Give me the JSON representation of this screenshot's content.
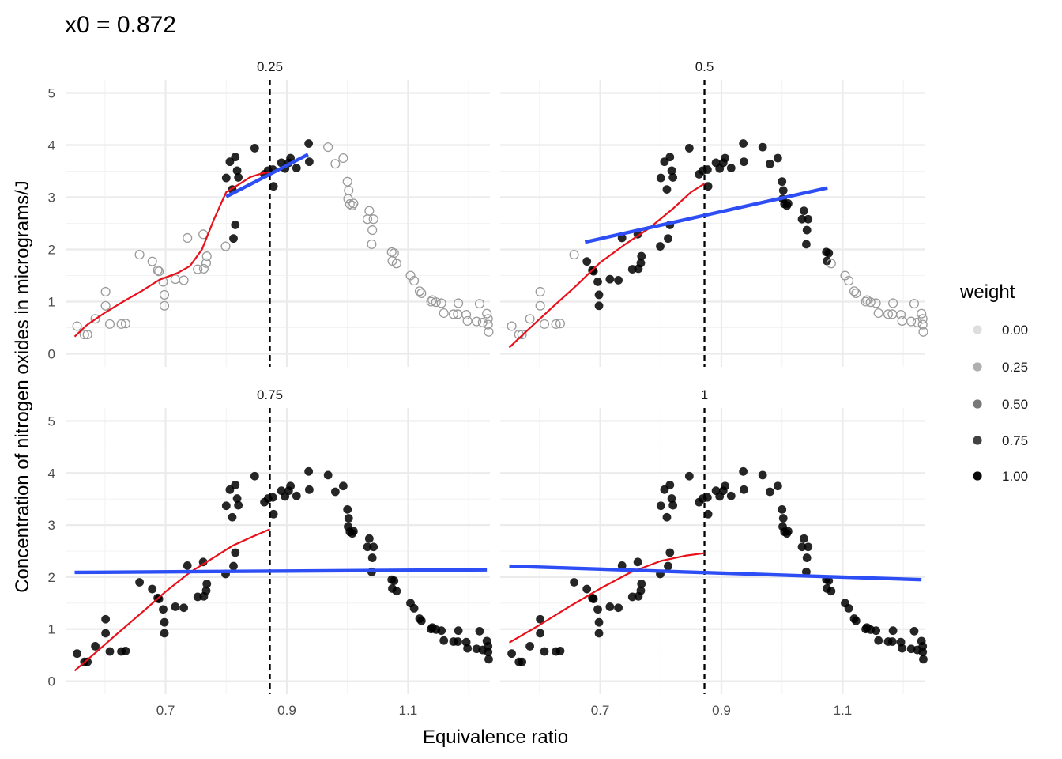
{
  "chart_data": {
    "type": "scatter",
    "title": "x0 =  0.872",
    "xlabel": "Equivalence ratio",
    "ylabel": "Concentration of nitrogen oxides in micrograms/J",
    "x0": 0.872,
    "xlim": [
      0.535,
      1.235
    ],
    "ylim": [
      -0.25,
      5.25
    ],
    "x_ticks": [
      0.7,
      0.9,
      1.1
    ],
    "x_tick_labels": [
      "0.7",
      "0.9",
      "1.1"
    ],
    "y_ticks": [
      0,
      1,
      2,
      3,
      4,
      5
    ],
    "y_tick_labels": [
      "0",
      "1",
      "2",
      "3",
      "4",
      "5"
    ],
    "grid": true,
    "legend": {
      "title": "weight",
      "position": "right",
      "levels": [
        0,
        0.25,
        0.5,
        0.75,
        1
      ],
      "labels": [
        "0.00",
        "0.25",
        "0.50",
        "0.75",
        "1.00"
      ]
    },
    "points": [
      [
        0.554,
        0.53
      ],
      [
        0.566,
        0.37
      ],
      [
        0.571,
        0.37
      ],
      [
        0.584,
        0.67
      ],
      [
        0.601,
        1.19
      ],
      [
        0.601,
        0.92
      ],
      [
        0.608,
        0.57
      ],
      [
        0.627,
        0.57
      ],
      [
        0.634,
        0.58
      ],
      [
        0.657,
        1.9
      ],
      [
        0.678,
        1.77
      ],
      [
        0.687,
        1.6
      ],
      [
        0.689,
        1.58
      ],
      [
        0.696,
        1.38
      ],
      [
        0.698,
        1.13
      ],
      [
        0.698,
        0.92
      ],
      [
        0.716,
        1.43
      ],
      [
        0.73,
        1.41
      ],
      [
        0.736,
        2.22
      ],
      [
        0.753,
        1.62
      ],
      [
        0.762,
        2.29
      ],
      [
        0.763,
        1.63
      ],
      [
        0.767,
        1.74
      ],
      [
        0.768,
        1.87
      ],
      [
        0.799,
        2.06
      ],
      [
        0.8,
        3.37
      ],
      [
        0.806,
        3.68
      ],
      [
        0.81,
        3.15
      ],
      [
        0.812,
        2.21
      ],
      [
        0.815,
        2.47
      ],
      [
        0.815,
        3.77
      ],
      [
        0.818,
        3.51
      ],
      [
        0.82,
        3.38
      ],
      [
        0.847,
        3.94
      ],
      [
        0.863,
        3.44
      ],
      [
        0.869,
        3.51
      ],
      [
        0.877,
        3.53
      ],
      [
        0.878,
        3.21
      ],
      [
        0.891,
        3.66
      ],
      [
        0.897,
        3.55
      ],
      [
        0.903,
        3.66
      ],
      [
        0.906,
        3.75
      ],
      [
        0.916,
        3.56
      ],
      [
        0.936,
        4.03
      ],
      [
        0.937,
        3.68
      ],
      [
        0.968,
        3.96
      ],
      [
        0.98,
        3.64
      ],
      [
        0.993,
        3.75
      ],
      [
        1.0,
        3.3
      ],
      [
        1.001,
        2.97
      ],
      [
        1.002,
        3.13
      ],
      [
        1.004,
        2.87
      ],
      [
        1.008,
        2.84
      ],
      [
        1.01,
        2.88
      ],
      [
        1.033,
        2.58
      ],
      [
        1.036,
        2.74
      ],
      [
        1.04,
        2.1
      ],
      [
        1.041,
        2.37
      ],
      [
        1.043,
        2.58
      ],
      [
        1.073,
        1.95
      ],
      [
        1.074,
        1.78
      ],
      [
        1.077,
        1.93
      ],
      [
        1.081,
        1.73
      ],
      [
        1.104,
        1.5
      ],
      [
        1.11,
        1.4
      ],
      [
        1.119,
        1.2
      ],
      [
        1.122,
        1.16
      ],
      [
        1.138,
        1.0
      ],
      [
        1.14,
        1.03
      ],
      [
        1.146,
        0.99
      ],
      [
        1.155,
        0.97
      ],
      [
        1.159,
        0.78
      ],
      [
        1.175,
        0.76
      ],
      [
        1.182,
        0.76
      ],
      [
        1.183,
        0.97
      ],
      [
        1.196,
        0.75
      ],
      [
        1.198,
        0.63
      ],
      [
        1.213,
        0.62
      ],
      [
        1.218,
        0.96
      ],
      [
        1.223,
        0.6
      ],
      [
        1.23,
        0.77
      ],
      [
        1.232,
        0.56
      ],
      [
        1.232,
        0.67
      ],
      [
        1.233,
        0.42
      ]
    ],
    "panels": [
      {
        "span": "0.25",
        "window": [
          0.8,
          0.94
        ],
        "linear_fit": {
          "x": [
            0.8,
            0.935
          ],
          "y": [
            3.01,
            3.82
          ]
        },
        "local_fit": {
          "x": [
            0.55,
            0.57,
            0.6,
            0.63,
            0.66,
            0.69,
            0.72,
            0.74,
            0.76,
            0.78,
            0.8,
            0.82,
            0.84,
            0.86,
            0.872
          ],
          "y": [
            0.33,
            0.55,
            0.79,
            1.0,
            1.2,
            1.42,
            1.55,
            1.68,
            2.0,
            2.58,
            3.1,
            3.24,
            3.39,
            3.46,
            3.48
          ]
        }
      },
      {
        "span": "0.5",
        "window": [
          0.67,
          1.08
        ],
        "linear_fit": {
          "x": [
            0.675,
            1.075
          ],
          "y": [
            2.14,
            3.18
          ]
        },
        "local_fit": {
          "x": [
            0.55,
            0.58,
            0.62,
            0.66,
            0.7,
            0.74,
            0.78,
            0.82,
            0.85,
            0.872
          ],
          "y": [
            0.12,
            0.45,
            0.88,
            1.3,
            1.75,
            2.09,
            2.4,
            2.78,
            3.1,
            3.26
          ]
        }
      },
      {
        "span": "0.75",
        "window": [
          0.54,
          1.235
        ],
        "linear_fit": {
          "x": [
            0.55,
            1.23
          ],
          "y": [
            2.09,
            2.14
          ]
        },
        "local_fit": {
          "x": [
            0.55,
            0.58,
            0.62,
            0.66,
            0.7,
            0.74,
            0.78,
            0.81,
            0.84,
            0.872
          ],
          "y": [
            0.2,
            0.5,
            0.91,
            1.31,
            1.72,
            2.09,
            2.38,
            2.6,
            2.76,
            2.92
          ]
        }
      },
      {
        "span": "1",
        "window": [
          0.54,
          1.235
        ],
        "linear_fit": {
          "x": [
            0.55,
            1.23
          ],
          "y": [
            2.21,
            1.95
          ]
        },
        "local_fit": {
          "x": [
            0.55,
            0.6,
            0.65,
            0.7,
            0.75,
            0.8,
            0.84,
            0.872
          ],
          "y": [
            0.74,
            1.08,
            1.44,
            1.78,
            2.09,
            2.31,
            2.41,
            2.46
          ]
        }
      }
    ]
  },
  "colors": {
    "linear_fit": "#2e4ef5",
    "local_fit": "#e8101a",
    "cutoff_line": "#000000",
    "point": "#000000"
  }
}
